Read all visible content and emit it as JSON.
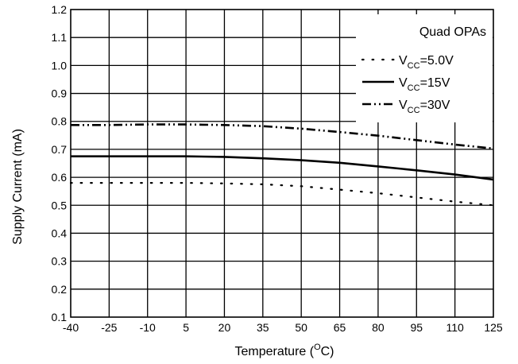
{
  "chart_data": {
    "type": "line",
    "title": "",
    "xlabel": "Temperature (",
    "xlabel_sup": "O",
    "xlabel_tail": "C)",
    "ylabel": "Supply Current (mA)",
    "x_categories": [
      "-40",
      "-25",
      "-10",
      "5",
      "20",
      "35",
      "50",
      "65",
      "80",
      "95",
      "110",
      "125"
    ],
    "xlim": [
      -40,
      125
    ],
    "ylim": [
      0.1,
      1.2
    ],
    "y_ticks": [
      "0.1",
      "0.2",
      "0.3",
      "0.4",
      "0.5",
      "0.6",
      "0.7",
      "0.8",
      "0.9",
      "1.0",
      "1.1",
      "1.2"
    ],
    "grid": true,
    "legend_position": "top-right",
    "legend_title": "Quad OPAs",
    "series": [
      {
        "name_prefix": "V",
        "name_sub": "CC",
        "name_suffix": "=5.0V",
        "style": "dotted",
        "x": [
          -40,
          -25,
          -10,
          5,
          20,
          35,
          50,
          65,
          80,
          95,
          110,
          125
        ],
        "y": [
          0.58,
          0.58,
          0.58,
          0.58,
          0.578,
          0.575,
          0.568,
          0.556,
          0.543,
          0.528,
          0.513,
          0.5
        ]
      },
      {
        "name_prefix": "V",
        "name_sub": "CC",
        "name_suffix": "=15V",
        "style": "solid",
        "x": [
          -40,
          -25,
          -10,
          5,
          20,
          35,
          50,
          65,
          80,
          95,
          110,
          125
        ],
        "y": [
          0.675,
          0.675,
          0.675,
          0.675,
          0.673,
          0.668,
          0.661,
          0.652,
          0.639,
          0.625,
          0.61,
          0.592
        ]
      },
      {
        "name_prefix": "V",
        "name_sub": "CC",
        "name_suffix": "=30V",
        "style": "dash-dot-dot",
        "x": [
          -40,
          -25,
          -10,
          5,
          20,
          35,
          50,
          65,
          80,
          95,
          110,
          125
        ],
        "y": [
          0.787,
          0.787,
          0.789,
          0.789,
          0.787,
          0.783,
          0.774,
          0.762,
          0.749,
          0.733,
          0.717,
          0.703
        ]
      }
    ]
  }
}
